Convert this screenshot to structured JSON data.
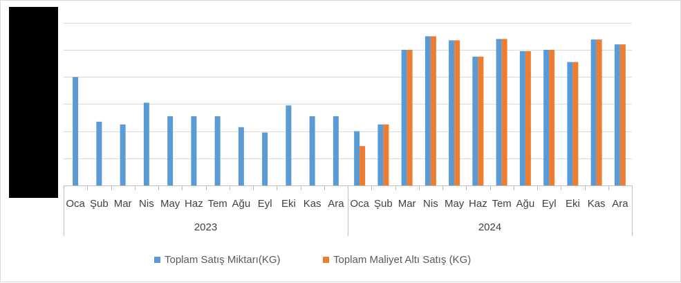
{
  "chart_data": {
    "type": "bar",
    "title": "",
    "xlabel": "",
    "ylabel": "",
    "y_axis_labels_visible": false,
    "grid": true,
    "legend_position": "bottom",
    "groups": [
      {
        "label": "2023",
        "months": [
          "Oca",
          "Şub",
          "Mar",
          "Nis",
          "May",
          "Haz",
          "Tem",
          "Ağu",
          "Eyl",
          "Eki",
          "Kas",
          "Ara"
        ]
      },
      {
        "label": "2024",
        "months": [
          "Oca",
          "Şub",
          "Mar",
          "Nis",
          "May",
          "Haz",
          "Tem",
          "Ağu",
          "Eyl",
          "Eki",
          "Kas",
          "Ara"
        ]
      }
    ],
    "ylim": [
      0,
      6.25
    ],
    "series": [
      {
        "name": "Toplam Satış Miktarı(KG)",
        "color": "#5b9bd5",
        "values": [
          4.0,
          2.35,
          2.25,
          3.05,
          2.55,
          2.55,
          2.55,
          2.15,
          1.95,
          2.95,
          2.55,
          2.55,
          2.0,
          2.25,
          5.0,
          5.5,
          5.35,
          4.75,
          5.4,
          4.95,
          5.0,
          4.55,
          5.38,
          5.2
        ]
      },
      {
        "name": "Toplam Maliyet  Altı  Satış (KG)",
        "color": "#ed7d31",
        "values": [
          null,
          null,
          null,
          null,
          null,
          null,
          null,
          null,
          null,
          null,
          null,
          null,
          1.45,
          2.25,
          5.0,
          5.5,
          5.35,
          4.75,
          5.4,
          4.95,
          5.0,
          4.55,
          5.38,
          5.2
        ]
      }
    ]
  }
}
